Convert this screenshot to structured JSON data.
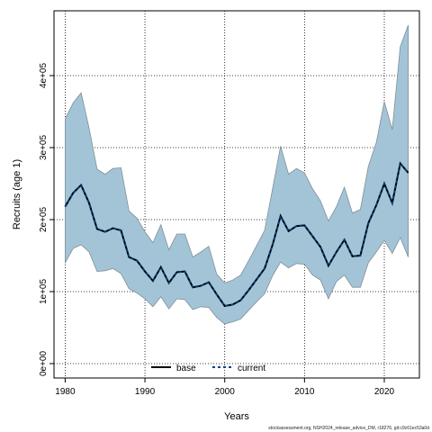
{
  "chart_data": {
    "type": "area",
    "xlabel": "Years",
    "ylabel": "Recruits (age 1)",
    "xlim": [
      1978.6,
      2024.4
    ],
    "ylim": [
      -20000,
      490000
    ],
    "x_ticks": [
      1980,
      1990,
      2000,
      2010,
      2020
    ],
    "x_tick_labels": [
      "1980",
      "1990",
      "2000",
      "2010",
      "2020"
    ],
    "y_ticks": [
      0,
      100000,
      200000,
      300000,
      400000
    ],
    "y_tick_labels": [
      "0e+00",
      "1e+05",
      "2e+05",
      "3e+05",
      "4e+05"
    ],
    "grid": "dotted",
    "legend_position": "bottom-center",
    "band_color": "#a3c4d6",
    "band_edge_color": "#7f8f99",
    "line_color": "#004080",
    "x": [
      1980,
      1981,
      1982,
      1983,
      1984,
      1985,
      1986,
      1987,
      1988,
      1989,
      1990,
      1991,
      1992,
      1993,
      1994,
      1995,
      1996,
      1997,
      1998,
      1999,
      2000,
      2001,
      2002,
      2003,
      2004,
      2005,
      2006,
      2007,
      2008,
      2009,
      2010,
      2011,
      2012,
      2013,
      2014,
      2015,
      2016,
      2017,
      2018,
      2019,
      2020,
      2021,
      2022,
      2023
    ],
    "series": [
      {
        "name": "base",
        "style": "solid",
        "color": "#000000",
        "values": [
          218000,
          237000,
          248000,
          223000,
          187000,
          183000,
          188000,
          185000,
          148000,
          143000,
          128000,
          115000,
          134000,
          112000,
          127000,
          128000,
          106000,
          108000,
          113000,
          96000,
          80000,
          82000,
          88000,
          102000,
          117000,
          132000,
          165000,
          205000,
          184000,
          191000,
          192000,
          177000,
          162000,
          136000,
          155000,
          172000,
          149000,
          150000,
          195000,
          220000,
          250000,
          223000,
          278000,
          265000
        ]
      },
      {
        "name": "current",
        "style": "dashed",
        "color": "#004080",
        "values": [
          218000,
          237000,
          248000,
          223000,
          187000,
          183000,
          188000,
          185000,
          148000,
          143000,
          128000,
          115000,
          134000,
          112000,
          127000,
          128000,
          106000,
          108000,
          113000,
          96000,
          80000,
          82000,
          88000,
          102000,
          117000,
          132000,
          165000,
          205000,
          184000,
          191000,
          192000,
          177000,
          162000,
          136000,
          155000,
          172000,
          149000,
          150000,
          195000,
          220000,
          250000,
          223000,
          278000,
          265000
        ]
      }
    ],
    "band": {
      "upper": [
        340000,
        362000,
        376000,
        327000,
        270000,
        263000,
        271000,
        272000,
        212000,
        202000,
        183000,
        168000,
        193000,
        158000,
        180000,
        180000,
        148000,
        155000,
        163000,
        124000,
        112000,
        116000,
        123000,
        143000,
        164000,
        185000,
        243000,
        302000,
        263000,
        271000,
        265000,
        243000,
        226000,
        198000,
        218000,
        245000,
        209000,
        214000,
        274000,
        307000,
        364000,
        325000,
        440000,
        470000
      ],
      "lower": [
        140000,
        160000,
        165000,
        155000,
        128000,
        129000,
        132000,
        125000,
        104000,
        98000,
        90000,
        79000,
        93000,
        76000,
        90000,
        89000,
        75000,
        79000,
        78000,
        64000,
        55000,
        58000,
        62000,
        74000,
        86000,
        97000,
        122000,
        141000,
        133000,
        139000,
        138000,
        123000,
        116000,
        90000,
        114000,
        123000,
        106000,
        106000,
        140000,
        155000,
        171000,
        153000,
        175000,
        148000
      ]
    }
  },
  "legend": {
    "items": [
      {
        "label": "base",
        "style": "solid",
        "color": "#000000"
      },
      {
        "label": "current",
        "style": "dashed",
        "color": "#004080"
      }
    ]
  },
  "footer": {
    "text": "stockassessment.org, NSH2024_release_advice_DM, r18276, git:c9c61ec53a0d"
  }
}
